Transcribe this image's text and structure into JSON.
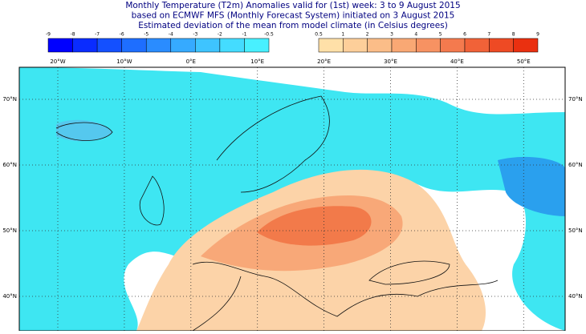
{
  "header": {
    "title_lines": [
      "Monthly Temperature (T2m) Anomalies valid for (1st) week: 3 to 9 August 2015",
      "based on ECMWF MFS (Monthly Forecast System) initiated on 3 August 2015",
      "Estimated deviation of the mean from model climate (in Celsius degrees)"
    ]
  },
  "colorbar": {
    "negative_labels": [
      -9,
      -8,
      -7,
      -6,
      -5,
      -4,
      -3,
      -2,
      -1,
      -0.5
    ],
    "positive_labels": [
      0.5,
      1,
      2,
      3,
      4,
      5,
      6,
      7,
      8,
      9
    ]
  },
  "map": {
    "longitude_labels": [
      "20°W",
      "10°W",
      "0°E",
      "10°E",
      "20°E",
      "30°E",
      "40°E",
      "50°E"
    ],
    "latitude_labels": [
      "70°N",
      "60°N",
      "50°N",
      "40°N"
    ]
  }
}
